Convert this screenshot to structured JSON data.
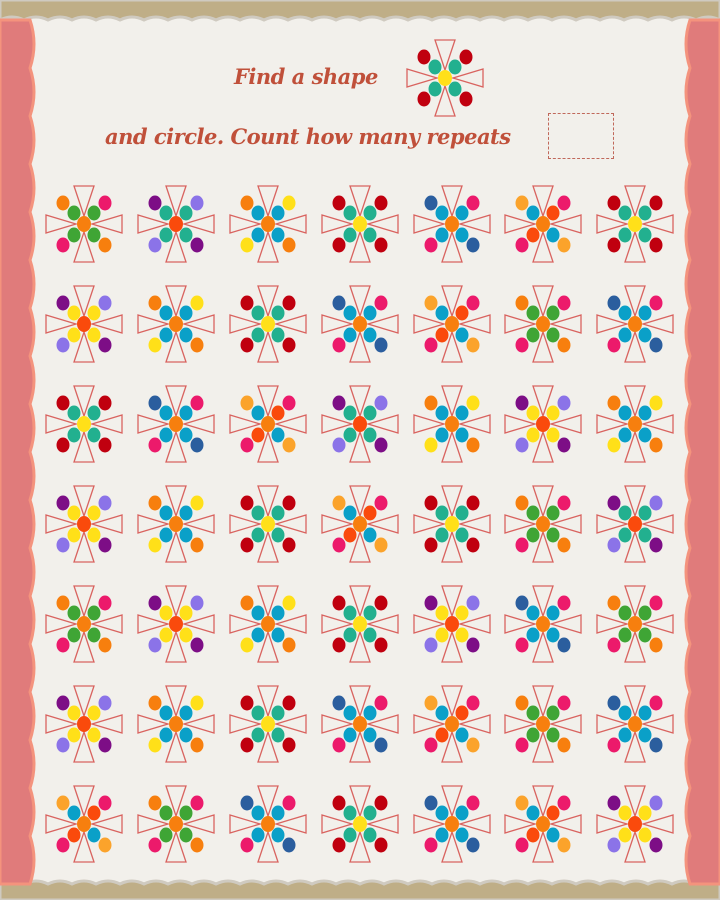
{
  "instructions": {
    "line1": "Find a shape",
    "line2": "and circle. Count how many repeats"
  },
  "colors": {
    "top_band": "#bfae87",
    "side_band": "#e07b7b",
    "paper": "#f2f0eb",
    "outline": "#d9635f",
    "text": "#c0503a"
  },
  "target_pattern": "A",
  "patterns": {
    "A": {
      "outer": [
        "#c0000f",
        "#c0000f",
        "#c0000f",
        "#c0000f"
      ],
      "inner": [
        "#22b08f",
        "#22b08f",
        "#22b08f",
        "#22b08f"
      ],
      "center": "#ffe019"
    },
    "B": {
      "outer": [
        "#f77f0e",
        "#ec1a6b",
        "#ec1a6b",
        "#f77f0e"
      ],
      "inner": [
        "#3fa535",
        "#3fa535",
        "#3fa535",
        "#3fa535"
      ],
      "center": "#f77f0e"
    },
    "C": {
      "outer": [
        "#7d0e86",
        "#8b73e8",
        "#8b73e8",
        "#7d0e86"
      ],
      "inner": [
        "#22b08f",
        "#22b08f",
        "#22b08f",
        "#22b08f"
      ],
      "center": "#fa4a0c"
    },
    "D": {
      "outer": [
        "#f77f0e",
        "#ffe019",
        "#ffe019",
        "#f77f0e"
      ],
      "inner": [
        "#0aa0c8",
        "#0aa0c8",
        "#0aa0c8",
        "#0aa0c8"
      ],
      "center": "#f77f0e"
    },
    "E": {
      "outer": [
        "#2b5e9e",
        "#ec1a6b",
        "#ec1a6b",
        "#2b5e9e"
      ],
      "inner": [
        "#0aa0c8",
        "#0aa0c8",
        "#0aa0c8",
        "#0aa0c8"
      ],
      "center": "#f77f0e"
    },
    "F": {
      "outer": [
        "#fba32b",
        "#ec1a6b",
        "#ec1a6b",
        "#fba32b"
      ],
      "inner": [
        "#0aa0c8",
        "#fa4a0c",
        "#fa4a0c",
        "#0aa0c8"
      ],
      "center": "#f77f0e"
    },
    "G": {
      "outer": [
        "#7d0e86",
        "#8b73e8",
        "#8b73e8",
        "#7d0e86"
      ],
      "inner": [
        "#ffe019",
        "#ffe019",
        "#ffe019",
        "#ffe019"
      ],
      "center": "#fa4a0c"
    }
  },
  "grid": [
    [
      "B",
      "C",
      "D",
      "A",
      "E",
      "F",
      "A"
    ],
    [
      "G",
      "D",
      "A",
      "E",
      "F",
      "B",
      "E"
    ],
    [
      "A",
      "E",
      "F",
      "C",
      "D",
      "G",
      "D"
    ],
    [
      "G",
      "D",
      "A",
      "F",
      "A",
      "B",
      "C"
    ],
    [
      "B",
      "G",
      "D",
      "A",
      "G",
      "E",
      "B"
    ],
    [
      "G",
      "D",
      "A",
      "E",
      "F",
      "B",
      "E"
    ],
    [
      "F",
      "B",
      "E",
      "A",
      "E",
      "F",
      "G"
    ]
  ]
}
